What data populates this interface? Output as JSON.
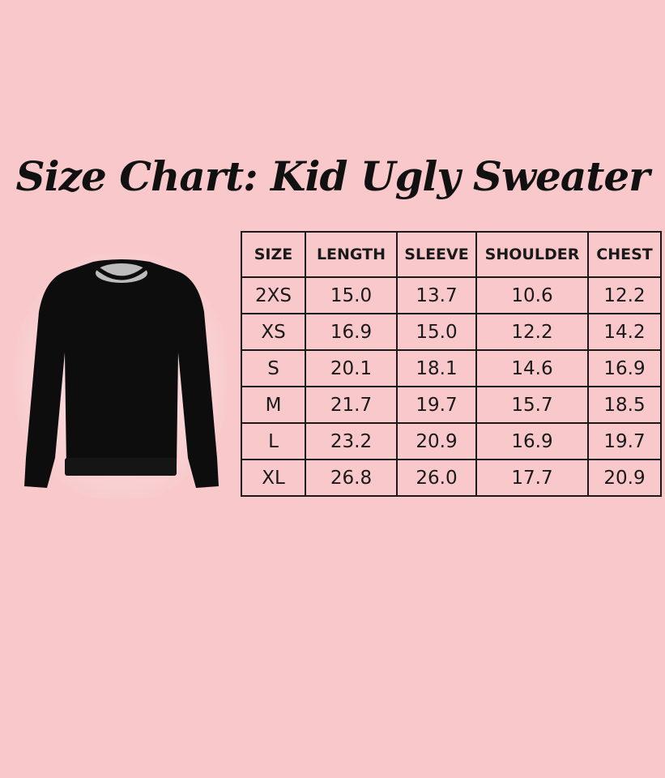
{
  "title": "Size Chart: Kid Ugly Sweater",
  "colors": {
    "background": "#f8c8ca",
    "text": "#111111"
  },
  "image": "black-crewneck-sweater",
  "chart_data": {
    "type": "table",
    "columns": [
      "SIZE",
      "LENGTH",
      "SLEEVE",
      "SHOULDER",
      "CHEST"
    ],
    "rows": [
      [
        "2XS",
        "15.0",
        "13.7",
        "10.6",
        "12.2"
      ],
      [
        "XS",
        "16.9",
        "15.0",
        "12.2",
        "14.2"
      ],
      [
        "S",
        "20.1",
        "18.1",
        "14.6",
        "16.9"
      ],
      [
        "M",
        "21.7",
        "19.7",
        "15.7",
        "18.5"
      ],
      [
        "L",
        "23.2",
        "20.9",
        "16.9",
        "19.7"
      ],
      [
        "XL",
        "26.8",
        "26.0",
        "17.7",
        "20.9"
      ]
    ]
  }
}
